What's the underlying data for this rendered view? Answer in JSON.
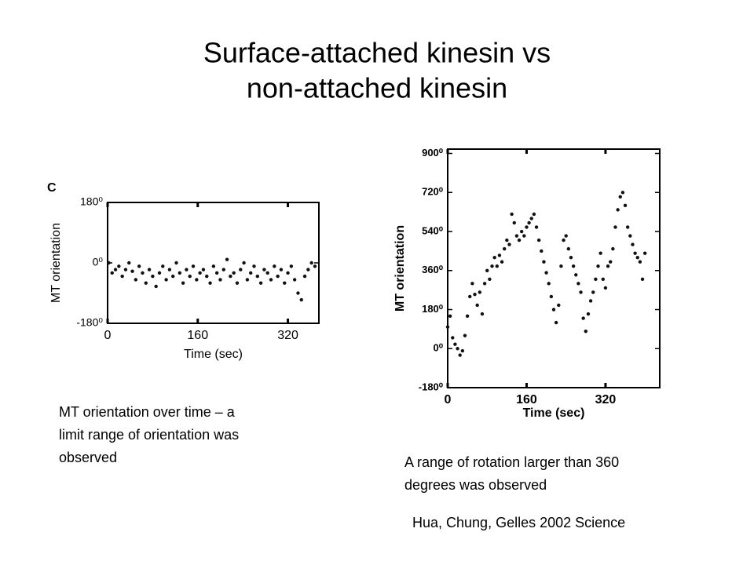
{
  "slide": {
    "title_lines": [
      "Surface-attached kinesin vs",
      "non-attached kinesin"
    ],
    "left_caption_lines": [
      "MT orientation over time – a",
      "limit range of orientation was",
      "observed"
    ],
    "right_caption_lines": [
      "A range of rotation larger than 360",
      "degrees was observed"
    ],
    "citation": "Hua, Chung, Gelles 2002 Science"
  },
  "chart_data": [
    {
      "type": "scatter",
      "annotation": "C",
      "ylabel": "MT orientation",
      "xlabel": "Time (sec)",
      "color": "#111111",
      "xlim": [
        0,
        375
      ],
      "xticks": [
        0,
        160,
        320
      ],
      "ylim": [
        -180,
        180
      ],
      "yticks": [
        {
          "value": -180,
          "label": "-180⁰"
        },
        {
          "value": 0,
          "label": "0⁰"
        },
        {
          "value": 180,
          "label": "180⁰"
        }
      ],
      "x": [
        2,
        8,
        14,
        20,
        26,
        32,
        38,
        44,
        50,
        56,
        62,
        68,
        74,
        80,
        86,
        92,
        98,
        104,
        110,
        116,
        122,
        128,
        134,
        140,
        146,
        152,
        158,
        164,
        170,
        176,
        182,
        188,
        194,
        200,
        206,
        212,
        218,
        224,
        230,
        236,
        242,
        248,
        254,
        260,
        266,
        272,
        278,
        284,
        290,
        296,
        302,
        308,
        314,
        320,
        326,
        332,
        338,
        344,
        350,
        356,
        362,
        368
      ],
      "values": [
        0,
        -30,
        -20,
        -10,
        -40,
        -20,
        0,
        -25,
        -50,
        -10,
        -30,
        -60,
        -20,
        -40,
        -70,
        -30,
        -10,
        -50,
        -20,
        -40,
        0,
        -30,
        -60,
        -20,
        -40,
        -10,
        -50,
        -30,
        -20,
        -40,
        -60,
        -10,
        -30,
        -50,
        -20,
        10,
        -40,
        -30,
        -60,
        -20,
        0,
        -50,
        -30,
        -10,
        -40,
        -60,
        -20,
        -30,
        -50,
        -10,
        -40,
        -20,
        -60,
        -30,
        -10,
        -50,
        -90,
        -110,
        -40,
        -20,
        0,
        -10
      ]
    },
    {
      "type": "scatter",
      "ylabel": "MT orientation",
      "xlabel": "Time (sec)",
      "color": "#111111",
      "xlim": [
        0,
        430
      ],
      "xticks": [
        0,
        160,
        320
      ],
      "ylim": [
        -180,
        920
      ],
      "yticks": [
        {
          "value": -180,
          "label": "-180⁰"
        },
        {
          "value": 0,
          "label": "0⁰"
        },
        {
          "value": 180,
          "label": "180⁰"
        },
        {
          "value": 360,
          "label": "360⁰"
        },
        {
          "value": 540,
          "label": "540⁰"
        },
        {
          "value": 720,
          "label": "720⁰"
        },
        {
          "value": 900,
          "label": "900⁰"
        }
      ],
      "x": [
        0,
        5,
        10,
        15,
        20,
        25,
        30,
        35,
        40,
        45,
        50,
        55,
        60,
        65,
        70,
        75,
        80,
        85,
        90,
        95,
        100,
        105,
        110,
        115,
        120,
        125,
        130,
        135,
        140,
        145,
        150,
        155,
        160,
        165,
        170,
        175,
        180,
        185,
        190,
        195,
        200,
        205,
        210,
        215,
        220,
        225,
        230,
        235,
        240,
        245,
        250,
        255,
        260,
        265,
        270,
        275,
        280,
        285,
        290,
        295,
        300,
        305,
        310,
        315,
        320,
        325,
        330,
        335,
        340,
        345,
        350,
        355,
        360,
        365,
        370,
        375,
        380,
        385,
        390,
        395,
        400
      ],
      "values": [
        100,
        150,
        50,
        20,
        0,
        -30,
        -10,
        60,
        150,
        240,
        300,
        250,
        200,
        260,
        160,
        300,
        360,
        320,
        380,
        420,
        380,
        430,
        400,
        460,
        500,
        480,
        620,
        580,
        520,
        500,
        540,
        520,
        560,
        580,
        600,
        620,
        560,
        500,
        450,
        400,
        350,
        300,
        240,
        180,
        120,
        200,
        380,
        500,
        520,
        460,
        420,
        380,
        340,
        300,
        260,
        140,
        80,
        160,
        220,
        260,
        320,
        380,
        440,
        320,
        280,
        380,
        400,
        460,
        560,
        640,
        700,
        720,
        660,
        560,
        520,
        480,
        440,
        420,
        400,
        320,
        440
      ]
    }
  ]
}
